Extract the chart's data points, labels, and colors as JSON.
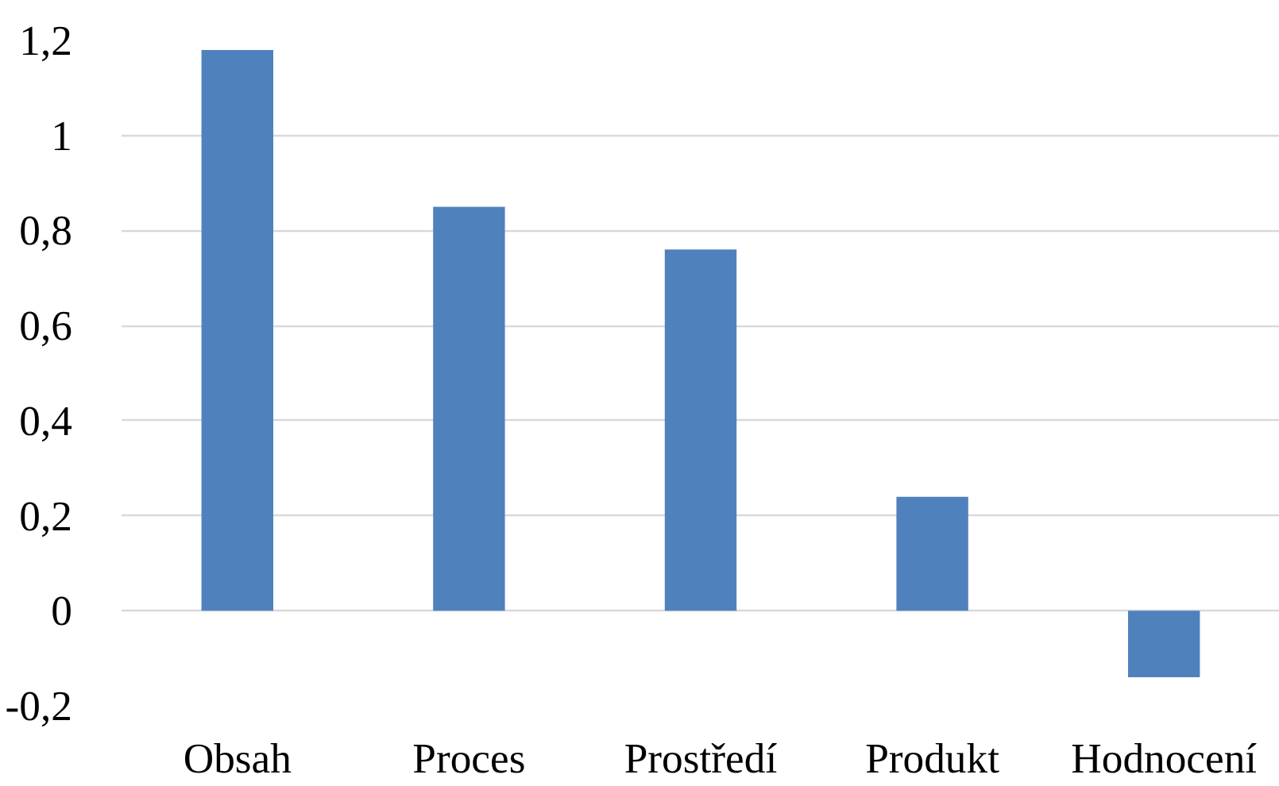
{
  "chart_data": {
    "type": "bar",
    "categories": [
      "Obsah",
      "Proces",
      "Prostředí",
      "Produkt",
      "Hodnocení"
    ],
    "values": [
      1.18,
      0.85,
      0.76,
      0.24,
      -0.14
    ],
    "color": "#4f81bd",
    "ylim": [
      -0.2,
      1.2
    ],
    "yticks": [
      {
        "value": -0.2,
        "label": "-0,2"
      },
      {
        "value": 0,
        "label": "0"
      },
      {
        "value": 0.2,
        "label": "0,2"
      },
      {
        "value": 0.4,
        "label": "0,4"
      },
      {
        "value": 0.6,
        "label": "0,6"
      },
      {
        "value": 0.8,
        "label": "0,8"
      },
      {
        "value": 1,
        "label": "1"
      },
      {
        "value": 1.2,
        "label": "1,2"
      }
    ],
    "grid": "y"
  }
}
